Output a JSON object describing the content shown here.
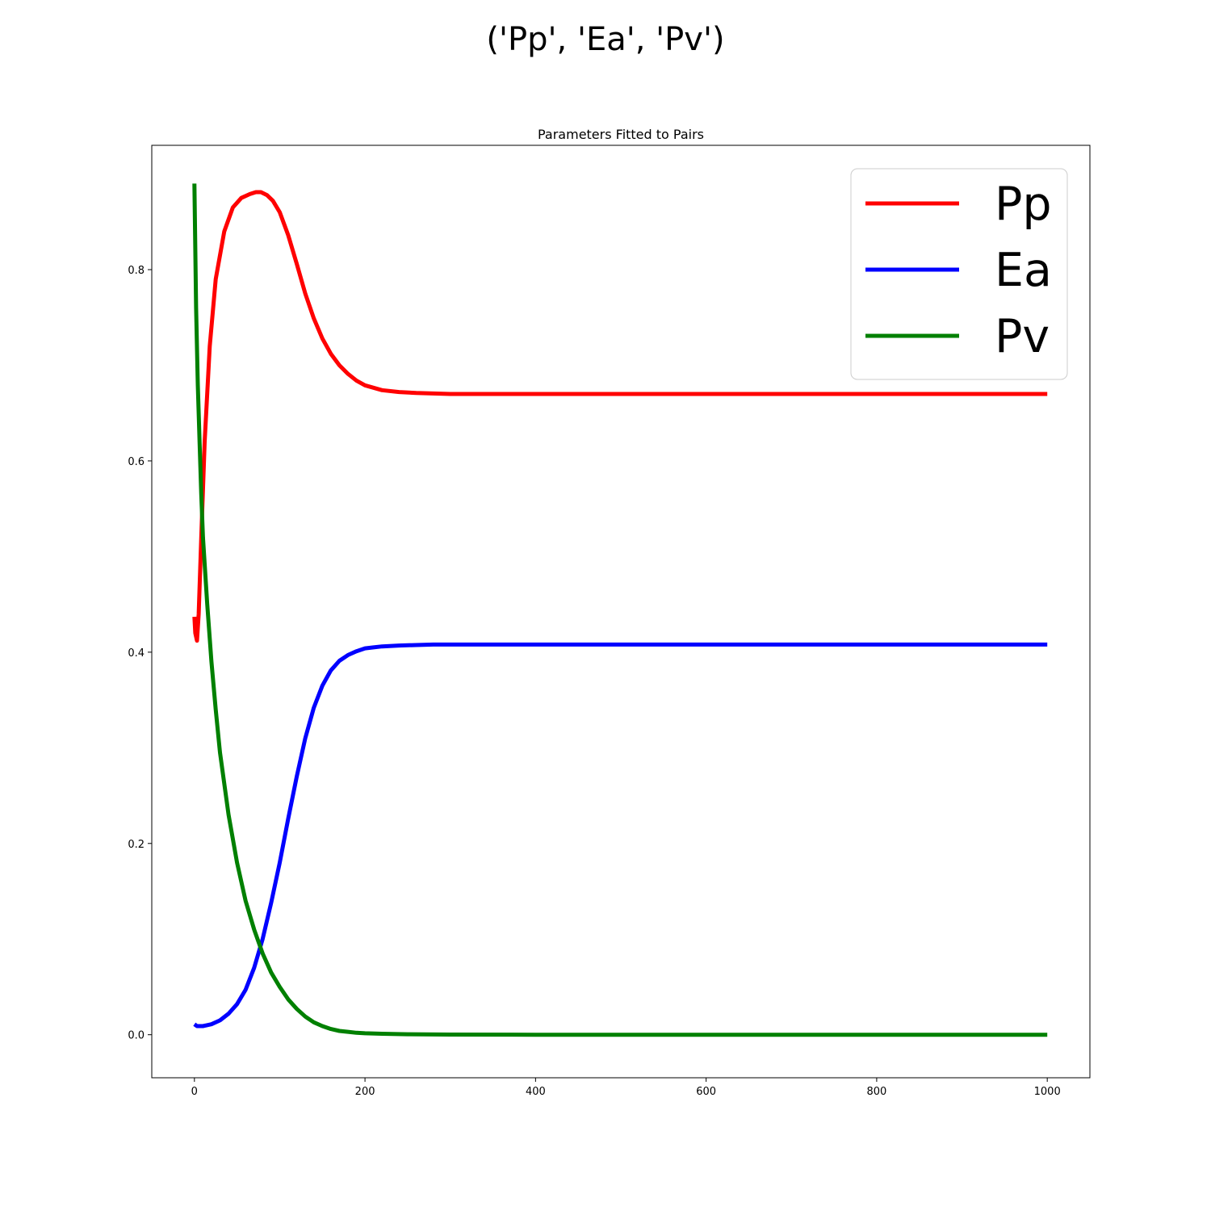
{
  "figure": {
    "suptitle": "('Pp', 'Ea', 'Pv')"
  },
  "chart_data": {
    "type": "line",
    "title": "Parameters Fitted to Pairs",
    "xlabel": "",
    "ylabel": "",
    "xlim": [
      -50,
      1050
    ],
    "ylim": [
      -0.045,
      0.93
    ],
    "xticks": [
      0,
      200,
      400,
      600,
      800,
      1000
    ],
    "xtick_labels": [
      "0",
      "200",
      "400",
      "600",
      "800",
      "1000"
    ],
    "yticks": [
      0.0,
      0.2,
      0.4,
      0.6,
      0.8
    ],
    "ytick_labels": [
      "0.0",
      "0.2",
      "0.4",
      "0.6",
      "0.8"
    ],
    "grid": false,
    "legend_position": "upper right",
    "series": [
      {
        "name": "Pp",
        "color": "#ff0000",
        "x": [
          0,
          1,
          3,
          5,
          8,
          12,
          18,
          25,
          35,
          45,
          55,
          65,
          72,
          78,
          85,
          92,
          100,
          110,
          120,
          130,
          140,
          150,
          160,
          170,
          180,
          190,
          200,
          220,
          240,
          260,
          280,
          300,
          350,
          400,
          500,
          600,
          700,
          800,
          900,
          1000
        ],
        "values": [
          0.437,
          0.42,
          0.412,
          0.44,
          0.52,
          0.62,
          0.72,
          0.79,
          0.84,
          0.865,
          0.875,
          0.879,
          0.881,
          0.881,
          0.878,
          0.872,
          0.86,
          0.836,
          0.806,
          0.775,
          0.749,
          0.728,
          0.712,
          0.7,
          0.691,
          0.684,
          0.679,
          0.674,
          0.672,
          0.671,
          0.6705,
          0.67,
          0.67,
          0.67,
          0.67,
          0.67,
          0.67,
          0.67,
          0.67,
          0.67
        ]
      },
      {
        "name": "Ea",
        "color": "#0000ff",
        "x": [
          0,
          3,
          10,
          20,
          30,
          40,
          50,
          60,
          70,
          80,
          90,
          100,
          110,
          120,
          130,
          140,
          150,
          160,
          170,
          180,
          190,
          200,
          210,
          220,
          240,
          260,
          280,
          300,
          350,
          400,
          500,
          600,
          700,
          800,
          900,
          1000
        ],
        "values": [
          0.011,
          0.009,
          0.009,
          0.011,
          0.015,
          0.022,
          0.032,
          0.047,
          0.07,
          0.1,
          0.138,
          0.18,
          0.226,
          0.27,
          0.31,
          0.342,
          0.365,
          0.381,
          0.391,
          0.397,
          0.401,
          0.404,
          0.405,
          0.406,
          0.407,
          0.4075,
          0.408,
          0.408,
          0.408,
          0.408,
          0.408,
          0.408,
          0.408,
          0.408,
          0.408,
          0.408
        ]
      },
      {
        "name": "Pv",
        "color": "#008000",
        "x": [
          0,
          2,
          4,
          6,
          8,
          10,
          15,
          20,
          25,
          30,
          40,
          50,
          60,
          70,
          80,
          90,
          100,
          110,
          120,
          130,
          140,
          150,
          160,
          170,
          180,
          190,
          200,
          220,
          250,
          300,
          400,
          500,
          600,
          700,
          800,
          900,
          1000
        ],
        "values": [
          0.89,
          0.76,
          0.68,
          0.62,
          0.565,
          0.52,
          0.45,
          0.39,
          0.34,
          0.295,
          0.23,
          0.18,
          0.14,
          0.11,
          0.085,
          0.065,
          0.05,
          0.037,
          0.027,
          0.019,
          0.013,
          0.009,
          0.006,
          0.004,
          0.003,
          0.002,
          0.0015,
          0.001,
          0.0005,
          0.0002,
          0.0,
          0.0,
          0.0,
          0.0,
          0.0,
          0.0,
          0.0
        ]
      }
    ]
  }
}
